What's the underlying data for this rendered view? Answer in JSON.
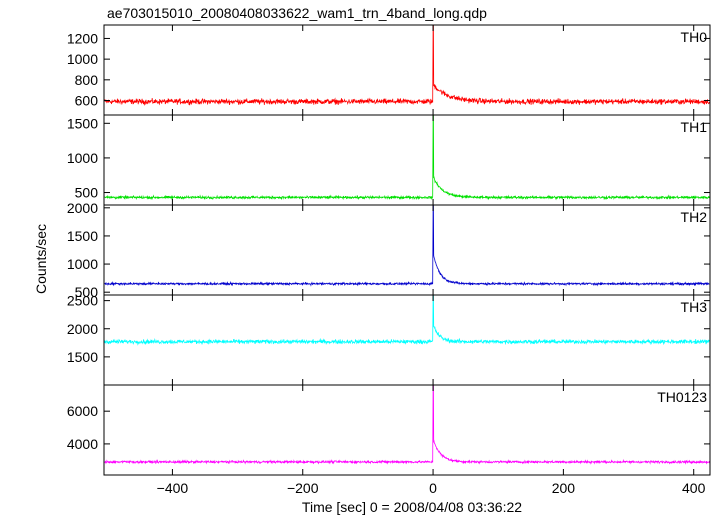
{
  "chart_data": {
    "type": "line",
    "title": "ae703015010_20080408033622_wam1_trn_4band_long.qdp",
    "xlabel": "Time [sec] 0 = 2008/04/08 03:36:22",
    "ylabel": "Counts/sec",
    "xlim": [
      -505,
      425
    ],
    "x_ticks": [
      -400,
      -200,
      0,
      200,
      400
    ],
    "grid": false,
    "panels": [
      {
        "name": "TH0",
        "color": "#ff0000",
        "ylim": [
          460,
          1330
        ],
        "y_ticks": [
          600,
          800,
          1000,
          1200
        ],
        "baseline": 590,
        "noise": 25,
        "peak": 1330,
        "decay_amp": 160,
        "decay_tau": 22
      },
      {
        "name": "TH1",
        "color": "#00e000",
        "ylim": [
          320,
          1620
        ],
        "y_ticks": [
          500,
          1000,
          1500
        ],
        "baseline": 430,
        "noise": 18,
        "peak": 1620,
        "decay_amp": 280,
        "decay_tau": 14
      },
      {
        "name": "TH2",
        "color": "#0000cc",
        "ylim": [
          450,
          2050
        ],
        "y_ticks": [
          500,
          1000,
          1500,
          2000
        ],
        "baseline": 650,
        "noise": 18,
        "peak": 2050,
        "decay_amp": 500,
        "decay_tau": 10
      },
      {
        "name": "TH3",
        "color": "#00ffff",
        "ylim": [
          1000,
          2600
        ],
        "y_ticks": [
          1500,
          2000,
          2500
        ],
        "baseline": 1770,
        "noise": 35,
        "peak": 2600,
        "decay_amp": 280,
        "decay_tau": 9
      },
      {
        "name": "TH0123",
        "color": "#ff00ff",
        "ylim": [
          2100,
          7600
        ],
        "y_ticks": [
          4000,
          6000
        ],
        "baseline": 2900,
        "noise": 70,
        "peak": 7600,
        "decay_amp": 1300,
        "decay_tau": 11
      }
    ]
  }
}
